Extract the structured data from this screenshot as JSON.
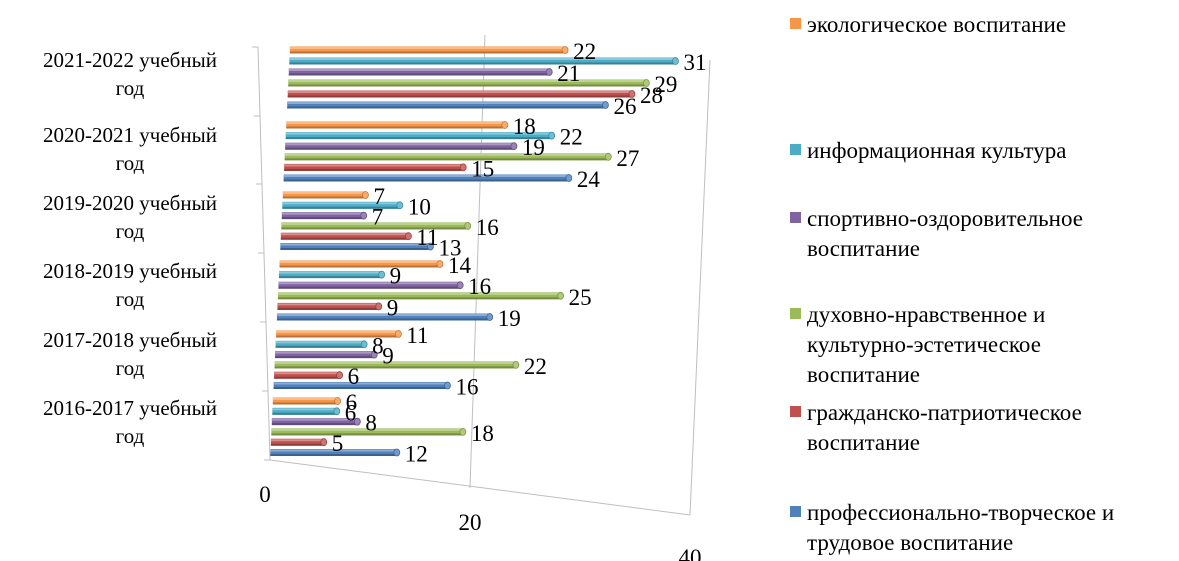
{
  "chart_data": {
    "type": "bar",
    "orientation": "horizontal",
    "style": "3d-cylinder",
    "categories": [
      "2016-2017 учебный год",
      "2017-2018 учебный год",
      "2018-2019 учебный год",
      "2019-2020 учебный год",
      "2020-2021 учебный год",
      "2021-2022 учебный год"
    ],
    "category_lines": [
      [
        "2016-2017 учебный",
        "год"
      ],
      [
        "2017-2018 учебный",
        "год"
      ],
      [
        "2018-2019 учебный",
        "год"
      ],
      [
        "2019-2020 учебный",
        "год"
      ],
      [
        "2020-2021 учебный",
        "год"
      ],
      [
        "2021-2022 учебный",
        "год"
      ]
    ],
    "series": [
      {
        "name": "профессионально-творческое и трудовое воспитание",
        "color": "#4f81bd",
        "values": [
          12,
          16,
          19,
          13,
          24,
          26
        ]
      },
      {
        "name": "гражданско-патриотическое воспитание",
        "color": "#c0504d",
        "values": [
          5,
          6,
          9,
          11,
          15,
          28
        ]
      },
      {
        "name": "духовно-нравственное и культурно-эстетическое воспитание",
        "color": "#9bbb59",
        "values": [
          18,
          22,
          25,
          16,
          27,
          29
        ]
      },
      {
        "name": "спортивно-оздоровительное воспитание",
        "color": "#8064a2",
        "values": [
          8,
          9,
          16,
          7,
          19,
          21
        ]
      },
      {
        "name": "информационная культура",
        "color": "#4bacc6",
        "values": [
          6,
          8,
          9,
          10,
          22,
          31
        ]
      },
      {
        "name": "экологическое воспитание",
        "color": "#f79646",
        "values": [
          6,
          11,
          14,
          7,
          18,
          22
        ]
      }
    ],
    "x_ticks": [
      "0",
      "20",
      "40"
    ],
    "xlim": [
      0,
      40
    ],
    "grid": false,
    "legend_position": "right"
  },
  "legend": {
    "items": [
      {
        "label": "экологическое  воспитание",
        "color": "#f79646"
      },
      {
        "label": "информационная культура",
        "color": "#4bacc6"
      },
      {
        "label": "спортивно-оздоровительное воспитание",
        "color": "#8064a2"
      },
      {
        "label": "духовно-нравственное и культурно-эстетическое воспитание",
        "color": "#9bbb59"
      },
      {
        "label": "гражданско-патриотическое воспитание",
        "color": "#c0504d"
      },
      {
        "label": "профессионально-творческое и трудовое воспитание",
        "color": "#4f81bd"
      }
    ]
  }
}
